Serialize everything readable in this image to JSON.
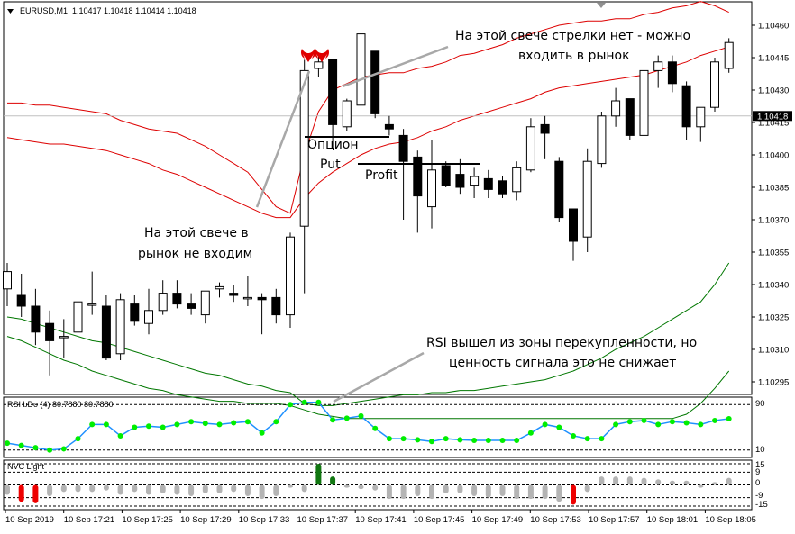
{
  "header": {
    "symbol": "EURUSD,M1",
    "ohlc": "1.10417 1.10418 1.10414 1.10418"
  },
  "price_axis": {
    "labels": [
      "1.10460",
      "1.10445",
      "1.10430",
      "1.10415",
      "1.10400",
      "1.10385",
      "1.10370",
      "1.10355",
      "1.10340",
      "1.10325",
      "1.10310",
      "1.10295"
    ],
    "current": "1.10418"
  },
  "time_axis": {
    "labels": [
      "10 Sep 2019",
      "10 Sep 17:21",
      "10 Sep 17:25",
      "10 Sep 17:29",
      "10 Sep 17:33",
      "10 Sep 17:37",
      "10 Sep 17:41",
      "10 Sep 17:45",
      "10 Sep 17:49",
      "10 Sep 17:53",
      "10 Sep 17:57",
      "10 Sep 18:01",
      "10 Sep 18:05"
    ]
  },
  "annotations": {
    "no_arrow_line1": "На этой свече стрелки нет - можно",
    "no_arrow_line2": "входить в рынок",
    "no_entry_line1": "На этой свече в",
    "no_entry_line2": "рынок не входим",
    "option_line1": "Опцион",
    "option_line2": "Put",
    "profit": "Profit",
    "rsi_line1": "RSI вышел из зоны перекупленности, но",
    "rsi_line2": "ценность сигнала это не снижает"
  },
  "rsi_panel": {
    "title": "RSI bDo (4) 80.7880 80.7880",
    "level_top": "90",
    "level_bottom": "10"
  },
  "nvc_panel": {
    "title": "NVC Light",
    "levels": [
      "15",
      "9",
      "0",
      "-9",
      "-15"
    ]
  },
  "colors": {
    "bull": "#ffffff",
    "bear": "#000000",
    "band_upper": "#dd0000",
    "band_lower": "#007700",
    "rsi_line": "#1e90ff",
    "rsi_dot": "#00ee00",
    "hist_neutral": "#b4b4b4",
    "hist_up": "#117711",
    "hist_down": "#ee0000"
  },
  "chart_data": [
    {
      "type": "candlestick",
      "title": "EURUSD,M1",
      "ylim": [
        1.1029,
        1.1047
      ],
      "candles": [
        {
          "o": 1.10338,
          "h": 1.1035,
          "l": 1.1033,
          "c": 1.10346
        },
        {
          "o": 1.10335,
          "h": 1.10345,
          "l": 1.10325,
          "c": 1.1033
        },
        {
          "o": 1.1033,
          "h": 1.10338,
          "l": 1.10312,
          "c": 1.10318
        },
        {
          "o": 1.10322,
          "h": 1.10328,
          "l": 1.10298,
          "c": 1.10314
        },
        {
          "o": 1.10316,
          "h": 1.10324,
          "l": 1.10306,
          "c": 1.10316
        },
        {
          "o": 1.10318,
          "h": 1.10336,
          "l": 1.10312,
          "c": 1.10332
        },
        {
          "o": 1.10331,
          "h": 1.10346,
          "l": 1.10326,
          "c": 1.10331
        },
        {
          "o": 1.1033,
          "h": 1.10335,
          "l": 1.10305,
          "c": 1.10306
        },
        {
          "o": 1.10308,
          "h": 1.10336,
          "l": 1.10305,
          "c": 1.10333
        },
        {
          "o": 1.10331,
          "h": 1.10335,
          "l": 1.10321,
          "c": 1.10323
        },
        {
          "o": 1.10322,
          "h": 1.10338,
          "l": 1.10317,
          "c": 1.10328
        },
        {
          "o": 1.10328,
          "h": 1.10342,
          "l": 1.10326,
          "c": 1.10336
        },
        {
          "o": 1.10336,
          "h": 1.10342,
          "l": 1.10329,
          "c": 1.10331
        },
        {
          "o": 1.10331,
          "h": 1.10336,
          "l": 1.10326,
          "c": 1.10329
        },
        {
          "o": 1.10326,
          "h": 1.10337,
          "l": 1.10322,
          "c": 1.10337
        },
        {
          "o": 1.10338,
          "h": 1.10341,
          "l": 1.10334,
          "c": 1.10339
        },
        {
          "o": 1.10336,
          "h": 1.1034,
          "l": 1.10332,
          "c": 1.10335
        },
        {
          "o": 1.10334,
          "h": 1.10344,
          "l": 1.1033,
          "c": 1.10334
        },
        {
          "o": 1.10334,
          "h": 1.10336,
          "l": 1.10317,
          "c": 1.10333
        },
        {
          "o": 1.10334,
          "h": 1.10338,
          "l": 1.10322,
          "c": 1.10326
        },
        {
          "o": 1.10326,
          "h": 1.10364,
          "l": 1.1032,
          "c": 1.10362
        },
        {
          "o": 1.10367,
          "h": 1.10444,
          "l": 1.10336,
          "c": 1.10439
        },
        {
          "o": 1.1044,
          "h": 1.10446,
          "l": 1.10436,
          "c": 1.10443
        },
        {
          "o": 1.10444,
          "h": 1.10444,
          "l": 1.10403,
          "c": 1.10414
        },
        {
          "o": 1.10413,
          "h": 1.10426,
          "l": 1.10411,
          "c": 1.10425
        },
        {
          "o": 1.10423,
          "h": 1.10459,
          "l": 1.10421,
          "c": 1.10456
        },
        {
          "o": 1.10448,
          "h": 1.10448,
          "l": 1.10417,
          "c": 1.10419
        },
        {
          "o": 1.10414,
          "h": 1.10418,
          "l": 1.10409,
          "c": 1.10412
        },
        {
          "o": 1.10409,
          "h": 1.10412,
          "l": 1.1037,
          "c": 1.10397
        },
        {
          "o": 1.10399,
          "h": 1.10402,
          "l": 1.10364,
          "c": 1.10381
        },
        {
          "o": 1.10376,
          "h": 1.10407,
          "l": 1.10366,
          "c": 1.10393
        },
        {
          "o": 1.10395,
          "h": 1.10397,
          "l": 1.10385,
          "c": 1.10386
        },
        {
          "o": 1.10391,
          "h": 1.10398,
          "l": 1.10382,
          "c": 1.10385
        },
        {
          "o": 1.10386,
          "h": 1.10394,
          "l": 1.1038,
          "c": 1.1039
        },
        {
          "o": 1.10389,
          "h": 1.10393,
          "l": 1.1038,
          "c": 1.10384
        },
        {
          "o": 1.10388,
          "h": 1.1039,
          "l": 1.1038,
          "c": 1.10382
        },
        {
          "o": 1.10383,
          "h": 1.10397,
          "l": 1.10379,
          "c": 1.10394
        },
        {
          "o": 1.10393,
          "h": 1.10417,
          "l": 1.10392,
          "c": 1.10413
        },
        {
          "o": 1.10414,
          "h": 1.10418,
          "l": 1.10398,
          "c": 1.1041
        },
        {
          "o": 1.10397,
          "h": 1.10399,
          "l": 1.10369,
          "c": 1.10371
        },
        {
          "o": 1.10375,
          "h": 1.10375,
          "l": 1.10351,
          "c": 1.1036
        },
        {
          "o": 1.10362,
          "h": 1.10403,
          "l": 1.10355,
          "c": 1.10397
        },
        {
          "o": 1.10396,
          "h": 1.1042,
          "l": 1.10394,
          "c": 1.10418
        },
        {
          "o": 1.10418,
          "h": 1.10431,
          "l": 1.10413,
          "c": 1.10425
        },
        {
          "o": 1.10426,
          "h": 1.10426,
          "l": 1.10407,
          "c": 1.10409
        },
        {
          "o": 1.10409,
          "h": 1.10443,
          "l": 1.10405,
          "c": 1.10439
        },
        {
          "o": 1.10439,
          "h": 1.10446,
          "l": 1.10431,
          "c": 1.10443
        },
        {
          "o": 1.10443,
          "h": 1.10446,
          "l": 1.10429,
          "c": 1.10433
        },
        {
          "o": 1.10432,
          "h": 1.10434,
          "l": 1.10407,
          "c": 1.10413
        },
        {
          "o": 1.10413,
          "h": 1.10422,
          "l": 1.10406,
          "c": 1.10422
        },
        {
          "o": 1.10422,
          "h": 1.10445,
          "l": 1.1042,
          "c": 1.10443
        },
        {
          "o": 1.1044,
          "h": 1.10454,
          "l": 1.10438,
          "c": 1.10452
        }
      ],
      "upper_band": [
        1.10424,
        1.10424,
        1.10423,
        1.10423,
        1.10422,
        1.10421,
        1.1042,
        1.10419,
        1.10416,
        1.10414,
        1.10412,
        1.10411,
        1.1041,
        1.10407,
        1.10404,
        1.104,
        1.10396,
        1.10392,
        1.10384,
        1.10376,
        1.10373,
        1.104,
        1.1042,
        1.1043,
        1.10433,
        1.10436,
        1.10437,
        1.10438,
        1.10438,
        1.1044,
        1.10441,
        1.10443,
        1.10446,
        1.10447,
        1.10449,
        1.10451,
        1.10454,
        1.10456,
        1.10458,
        1.1046,
        1.10461,
        1.10462,
        1.10462,
        1.10463,
        1.10463,
        1.10465,
        1.10466,
        1.10468,
        1.10469,
        1.10471,
        1.10469,
        1.10466
      ],
      "middle_band": [
        1.10408,
        1.10407,
        1.10406,
        1.10405,
        1.10405,
        1.10404,
        1.10403,
        1.10402,
        1.104,
        1.10398,
        1.10396,
        1.10393,
        1.10391,
        1.10388,
        1.10385,
        1.10382,
        1.10379,
        1.10376,
        1.10373,
        1.10371,
        1.10371,
        1.1038,
        1.10387,
        1.10392,
        1.10396,
        1.104,
        1.10403,
        1.10405,
        1.10406,
        1.10408,
        1.10411,
        1.10413,
        1.10416,
        1.10418,
        1.1042,
        1.10422,
        1.10424,
        1.10426,
        1.10429,
        1.10431,
        1.10432,
        1.10433,
        1.10434,
        1.10435,
        1.10436,
        1.10437,
        1.10439,
        1.10441,
        1.10443,
        1.10446,
        1.10448,
        1.1045
      ],
      "lower_band": [
        1.10325,
        1.10324,
        1.10322,
        1.1032,
        1.10318,
        1.10316,
        1.10314,
        1.10313,
        1.10311,
        1.10309,
        1.10307,
        1.10305,
        1.10303,
        1.10301,
        1.10299,
        1.10298,
        1.10296,
        1.10294,
        1.10293,
        1.10291,
        1.1029,
        1.10285,
        1.10284,
        1.10284,
        1.10285,
        1.10286,
        1.10287,
        1.10288,
        1.10289,
        1.10289,
        1.1029,
        1.1029,
        1.10291,
        1.10291,
        1.10292,
        1.10293,
        1.10294,
        1.10295,
        1.10296,
        1.10298,
        1.103,
        1.10303,
        1.10306,
        1.1031,
        1.10313,
        1.10316,
        1.1032,
        1.10324,
        1.10328,
        1.10332,
        1.1034,
        1.1035
      ],
      "lower_band2": [
        1.10316,
        1.10314,
        1.10311,
        1.10308,
        1.10305,
        1.10303,
        1.103,
        1.10298,
        1.10296,
        1.10294,
        1.10292,
        1.10291,
        1.10289,
        1.10288,
        1.10287,
        1.10286,
        1.10286,
        1.10285,
        1.10285,
        1.10285,
        1.10284,
        1.10282,
        1.1028,
        1.10279,
        1.10278,
        1.10278,
        1.10278,
        1.10278,
        1.10278,
        1.10278,
        1.10278,
        1.10278,
        1.10278,
        1.10278,
        1.10278,
        1.10278,
        1.10278,
        1.10278,
        1.10278,
        1.10278,
        1.10278,
        1.10278,
        1.10278,
        1.10278,
        1.10278,
        1.10278,
        1.10278,
        1.10278,
        1.1028,
        1.10285,
        1.10292,
        1.103
      ]
    },
    {
      "type": "line",
      "title": "RSI bDo (4) 80.7880 80.7880",
      "ylim": [
        0,
        100
      ],
      "levels": [
        90,
        10
      ],
      "values": [
        22,
        18,
        14,
        10,
        12,
        30,
        55,
        55,
        35,
        50,
        52,
        50,
        55,
        60,
        57,
        55,
        58,
        60,
        40,
        60,
        90,
        94,
        94,
        63,
        66,
        70,
        48,
        30,
        30,
        28,
        25,
        30,
        28,
        27,
        27,
        27,
        27,
        40,
        55,
        50,
        35,
        30,
        30,
        55,
        60,
        62,
        55,
        60,
        58,
        55,
        62,
        65
      ]
    },
    {
      "type": "bar",
      "title": "NVC Light",
      "ylim": [
        -15,
        15
      ],
      "levels": [
        15,
        9,
        0,
        -9,
        -15
      ],
      "values": [
        -7,
        -12,
        -13,
        -8,
        -5,
        -5,
        -5,
        -4,
        -7,
        -5,
        -7,
        -6,
        -7,
        -8,
        -6,
        -6,
        -5,
        -8,
        -10,
        -8,
        -2,
        -5,
        15,
        6,
        -2,
        -3,
        -4,
        -10,
        -10,
        -8,
        -10,
        -6,
        -6,
        -8,
        -9,
        -8,
        -10,
        -10,
        -10,
        -12,
        -14,
        -5,
        6,
        6,
        6,
        5,
        4,
        3,
        3,
        -2,
        2,
        5
      ],
      "marked_up": [
        22,
        23
      ],
      "marked_down": [
        1,
        2,
        40
      ]
    }
  ]
}
